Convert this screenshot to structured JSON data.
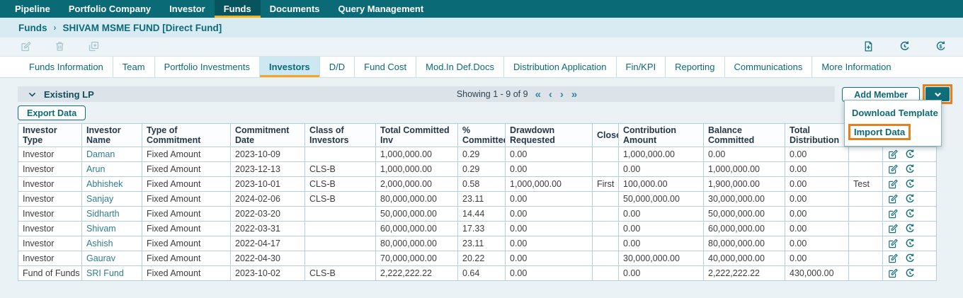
{
  "nav": {
    "items": [
      {
        "label": "Pipeline",
        "active": false
      },
      {
        "label": "Portfolio Company",
        "active": false
      },
      {
        "label": "Investor",
        "active": false
      },
      {
        "label": "Funds",
        "active": true
      },
      {
        "label": "Documents",
        "active": false
      },
      {
        "label": "Query Management",
        "active": false
      }
    ]
  },
  "breadcrumb": {
    "root": "Funds",
    "separator": "›",
    "current": "SHIVAM MSME FUND [Direct Fund]"
  },
  "toolbar": {
    "left_icons": [
      "edit-icon",
      "delete-icon",
      "duplicate-icon"
    ],
    "right_icons": [
      "add-document-icon",
      "history-icon",
      "currency-refresh-icon"
    ]
  },
  "tabs": {
    "items": [
      {
        "label": "Funds Information",
        "active": false
      },
      {
        "label": "Team",
        "active": false
      },
      {
        "label": "Portfolio Investments",
        "active": false
      },
      {
        "label": "Investors",
        "active": true
      },
      {
        "label": "D/D",
        "active": false
      },
      {
        "label": "Fund Cost",
        "active": false
      },
      {
        "label": "Mod.In Def.Docs",
        "active": false
      },
      {
        "label": "Distribution Application",
        "active": false
      },
      {
        "label": "Fin/KPI",
        "active": false
      },
      {
        "label": "Reporting",
        "active": false
      },
      {
        "label": "Communications",
        "active": false
      },
      {
        "label": "More Information",
        "active": false
      }
    ]
  },
  "section": {
    "title": "Existing LP",
    "pagination": {
      "text": "Showing 1 - 9 of 9",
      "first": "«",
      "prev": "‹",
      "next": "›",
      "last": "»"
    },
    "add_member_label": "Add Member",
    "export_label": "Export Data",
    "menu": {
      "items": [
        "Download Template",
        "Import Data"
      ],
      "highlighted": "Import Data"
    }
  },
  "table": {
    "columns": [
      "Investor Type",
      "Investor Name",
      "Type of Commitment",
      "Commitment Date",
      "Class of Investors",
      "Total Committed Inv",
      "% Committed",
      "Drawdown Requested",
      "Close",
      "Contribution Amount",
      "Balance Committed",
      "Total Distribution",
      "",
      ""
    ],
    "row_action_icons": [
      "edit-icon",
      "history-icon"
    ],
    "rows": [
      [
        "Investor",
        "Daman",
        "Fixed Amount",
        "2023-10-09",
        "",
        "1,000,000.00",
        "0.29",
        "0.00",
        "",
        "1,000,000.00",
        "0.00",
        "0.00",
        ""
      ],
      [
        "Investor",
        "Arun",
        "Fixed Amount",
        "2023-12-13",
        "CLS-B",
        "1,000,000.00",
        "0.29",
        "0.00",
        "",
        "0.00",
        "1,000,000.00",
        "0.00",
        ""
      ],
      [
        "Investor",
        "Abhishek",
        "Fixed Amount",
        "2023-10-01",
        "CLS-B",
        "2,000,000.00",
        "0.58",
        "1,000,000.00",
        "First",
        "100,000.00",
        "1,900,000.00",
        "0.00",
        "Test"
      ],
      [
        "Investor",
        "Sanjay",
        "Fixed Amount",
        "2024-02-06",
        "CLS-B",
        "80,000,000.00",
        "23.11",
        "0.00",
        "",
        "50,000,000.00",
        "30,000,000.00",
        "0.00",
        ""
      ],
      [
        "Investor",
        "Sidharth",
        "Fixed Amount",
        "2022-03-20",
        "",
        "50,000,000.00",
        "14.44",
        "0.00",
        "",
        "0.00",
        "50,000,000.00",
        "0.00",
        ""
      ],
      [
        "Investor",
        "Shivam",
        "Fixed Amount",
        "2022-03-31",
        "",
        "60,000,000.00",
        "17.33",
        "0.00",
        "",
        "0.00",
        "60,000,000.00",
        "0.00",
        ""
      ],
      [
        "Investor",
        "Ashish",
        "Fixed Amount",
        "2022-04-17",
        "",
        "80,000,000.00",
        "23.11",
        "0.00",
        "",
        "0.00",
        "80,000,000.00",
        "0.00",
        ""
      ],
      [
        "Investor",
        "Gaurav",
        "Fixed Amount",
        "2022-04-30",
        "",
        "70,000,000.00",
        "20.22",
        "0.00",
        "",
        "30,000,000.00",
        "40,000,000.00",
        "0.00",
        ""
      ],
      [
        "Fund of Funds",
        "SRI Fund",
        "Fixed Amount",
        "2023-10-02",
        "CLS-B",
        "2,222,222.22",
        "0.64",
        "0.00",
        "",
        "0.00",
        "2,222,222.22",
        "430,000.00",
        ""
      ]
    ]
  },
  "colors": {
    "nav_teal": "#0a6b76",
    "nav_active_teal": "#07545e",
    "nav_underline_yellow": "#f2b41c",
    "tab_underline_orange": "#f5a623",
    "annotation_orange": "#e87e1c",
    "accent_teal": "#0b6a75",
    "link_teal": "#2e7e91"
  }
}
